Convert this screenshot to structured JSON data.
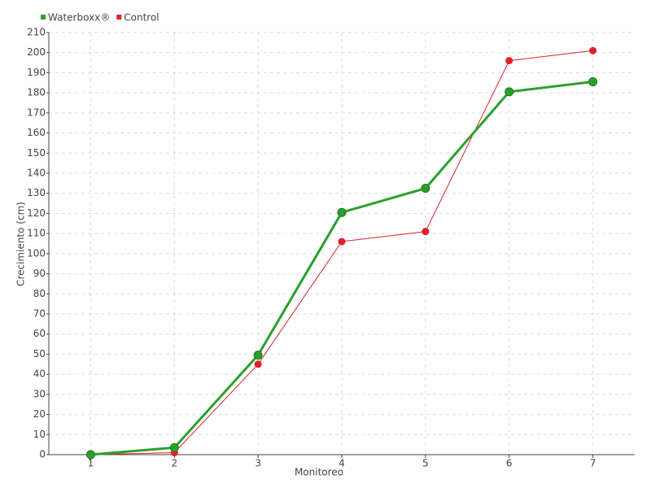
{
  "chart_data": {
    "type": "line",
    "categories": [
      "1",
      "2",
      "3",
      "4",
      "5",
      "6",
      "7"
    ],
    "series": [
      {
        "name": "Waterboxx®",
        "color": "#2ca02c",
        "values": [
          0,
          3.5,
          49.5,
          120.5,
          132.5,
          180.5,
          185.5
        ]
      },
      {
        "name": "Control",
        "color": "#e0202c",
        "values": [
          0,
          1,
          45,
          106,
          111,
          196,
          201
        ]
      }
    ],
    "x_label": "Monitoreo",
    "y_label": "Crecimiento (cm)",
    "ylim": [
      0,
      210
    ],
    "yticks": [
      0,
      10,
      20,
      30,
      40,
      50,
      60,
      70,
      80,
      90,
      100,
      110,
      120,
      130,
      140,
      150,
      160,
      170,
      180,
      190,
      200,
      210
    ],
    "grid": true,
    "legend": "top-left"
  }
}
